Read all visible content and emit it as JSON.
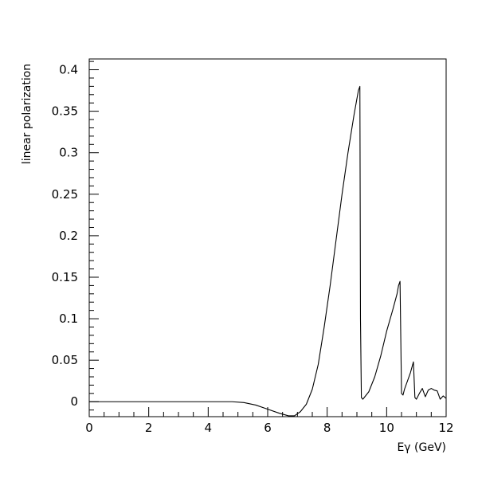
{
  "chart_data": {
    "type": "line",
    "xlabel": "Eγ (GeV)",
    "ylabel": "linear polarization",
    "xlim": [
      0,
      12
    ],
    "ylim": [
      -0.018,
      0.413
    ],
    "x_ticks": [
      0,
      2,
      4,
      6,
      8,
      10,
      12
    ],
    "x_tick_labels": [
      "0",
      "2",
      "4",
      "6",
      "8",
      "10",
      "12"
    ],
    "y_ticks": [
      0,
      0.05,
      0.1,
      0.15,
      0.2,
      0.25,
      0.3,
      0.35,
      0.4
    ],
    "y_tick_labels": [
      "0",
      "0.05",
      "0.1",
      "0.15",
      "0.2",
      "0.25",
      "0.3",
      "0.35",
      "0.4"
    ],
    "grid": false,
    "legend": "none",
    "series": [
      {
        "color": "#000000",
        "points": [
          [
            0,
            0
          ],
          [
            4.8,
            0
          ],
          [
            5.2,
            -0.001
          ],
          [
            5.6,
            -0.004
          ],
          [
            6.0,
            -0.009
          ],
          [
            6.4,
            -0.014
          ],
          [
            6.7,
            -0.017
          ],
          [
            6.9,
            -0.017
          ],
          [
            7.1,
            -0.012
          ],
          [
            7.3,
            -0.003
          ],
          [
            7.5,
            0.015
          ],
          [
            7.7,
            0.045
          ],
          [
            7.9,
            0.09
          ],
          [
            8.1,
            0.14
          ],
          [
            8.3,
            0.195
          ],
          [
            8.5,
            0.25
          ],
          [
            8.7,
            0.3
          ],
          [
            8.9,
            0.345
          ],
          [
            9.05,
            0.375
          ],
          [
            9.1,
            0.38
          ],
          [
            9.12,
            0.1
          ],
          [
            9.15,
            0.005
          ],
          [
            9.2,
            0.003
          ],
          [
            9.4,
            0.012
          ],
          [
            9.6,
            0.03
          ],
          [
            9.8,
            0.055
          ],
          [
            10.0,
            0.085
          ],
          [
            10.2,
            0.11
          ],
          [
            10.35,
            0.13
          ],
          [
            10.4,
            0.14
          ],
          [
            10.45,
            0.145
          ],
          [
            10.5,
            0.01
          ],
          [
            10.55,
            0.008
          ],
          [
            10.6,
            0.015
          ],
          [
            10.8,
            0.035
          ],
          [
            10.9,
            0.048
          ],
          [
            10.95,
            0.005
          ],
          [
            11.0,
            0.003
          ],
          [
            11.1,
            0.01
          ],
          [
            11.2,
            0.016
          ],
          [
            11.3,
            0.006
          ],
          [
            11.4,
            0.014
          ],
          [
            11.5,
            0.016
          ],
          [
            11.6,
            0.014
          ],
          [
            11.7,
            0.013
          ],
          [
            11.8,
            0.003
          ],
          [
            11.9,
            0.007
          ],
          [
            12.0,
            0.004
          ]
        ]
      }
    ]
  }
}
